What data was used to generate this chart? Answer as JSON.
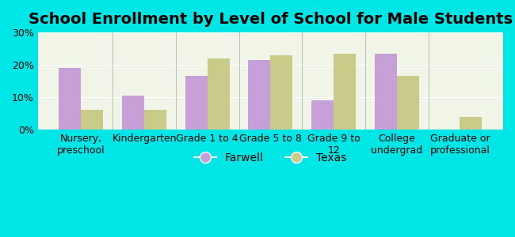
{
  "title": "School Enrollment by Level of School for Male Students",
  "categories": [
    "Nursery,\npreschool",
    "Kindergarten",
    "Grade 1 to 4",
    "Grade 5 to 8",
    "Grade 9 to\n12",
    "College\nundergrad",
    "Graduate or\nprofessional"
  ],
  "farwell": [
    19.0,
    10.5,
    16.5,
    21.5,
    9.0,
    23.5,
    0.0
  ],
  "texas": [
    6.0,
    6.0,
    22.0,
    23.0,
    23.5,
    16.5,
    4.0
  ],
  "farwell_color": "#c8a0d8",
  "texas_color": "#c8cc88",
  "background_color": "#00e5e5",
  "plot_bg_color": "#f0f5e8",
  "ylim": [
    0,
    30
  ],
  "yticks": [
    0,
    10,
    20,
    30
  ],
  "yticklabels": [
    "0%",
    "10%",
    "20%",
    "30%"
  ],
  "bar_width": 0.35,
  "legend_labels": [
    "Farwell",
    "Texas"
  ],
  "title_fontsize": 14,
  "tick_fontsize": 9,
  "legend_fontsize": 10
}
